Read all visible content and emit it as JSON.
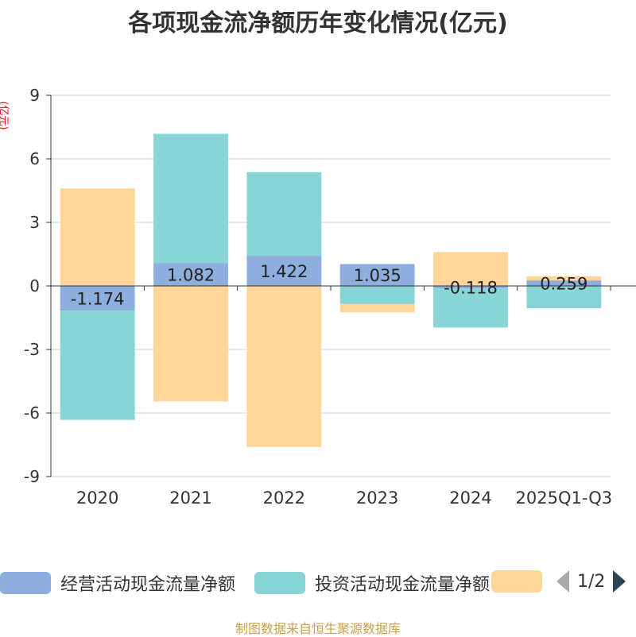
{
  "title": "各项现金流净额历年变化情况(亿元)",
  "unit_label": "(亿元)",
  "source": "制图数据来自恒生聚源数据库",
  "pager": {
    "text": "1/2"
  },
  "legend": [
    {
      "label": "经营活动现金流量净额",
      "color": "#8eaedd"
    },
    {
      "label": "投资活动现金流量净额",
      "color": "#88d5d8"
    },
    {
      "label": "",
      "color": "#ffd699"
    }
  ],
  "chart_data": {
    "type": "bar",
    "stacked": true,
    "categories": [
      "2020",
      "2021",
      "2022",
      "2023",
      "2024",
      "2025Q1-Q3"
    ],
    "ylim": [
      -9,
      9
    ],
    "yticks": [
      -9,
      -6,
      -3,
      0,
      3,
      6,
      9
    ],
    "ylabel": "(亿元)",
    "grid": true,
    "legend_position": "bottom",
    "series": [
      {
        "name": "经营活动现金流量净额",
        "color": "#8eaedd",
        "values": [
          -1.174,
          1.082,
          1.422,
          1.035,
          -0.118,
          0.259
        ],
        "labels": [
          "-1.174",
          "1.082",
          "1.422",
          "1.035",
          "-0.118",
          "0.259"
        ]
      },
      {
        "name": "投资活动现金流量净额",
        "color": "#88d5d8",
        "values": [
          -5.15,
          6.1,
          3.95,
          -0.85,
          -1.85,
          -1.05
        ]
      },
      {
        "name": "",
        "color": "#ffd699",
        "values": [
          4.6,
          -5.45,
          -7.6,
          -0.4,
          1.6,
          0.2
        ]
      }
    ]
  }
}
